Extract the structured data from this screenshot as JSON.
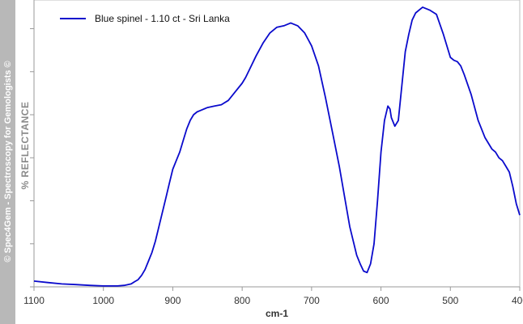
{
  "watermark": "© Spec4Gem - Spectroscopy for Gemologists ©",
  "colors": {
    "series": "#0a0acc",
    "axis": "#999999",
    "banner": "#b8b8b8"
  },
  "chart_data": {
    "type": "line",
    "xlabel": "cm-1",
    "ylabel": "% REFLECTANCE",
    "xlim": [
      1100,
      400
    ],
    "x_reversed": true,
    "ylim": [
      0,
      100
    ],
    "y_ticks_labeled": false,
    "y_tick_values": [
      0,
      15,
      30,
      45,
      60,
      75,
      90
    ],
    "x_ticks": [
      1100,
      1000,
      900,
      800,
      700,
      600,
      500,
      400
    ],
    "grid": false,
    "legend_position": "top-left",
    "series": [
      {
        "name": "Blue spinel - 1.10 ct - Sri Lanka",
        "x": [
          1100,
          1080,
          1060,
          1040,
          1020,
          1000,
          990,
          980,
          970,
          960,
          955,
          950,
          945,
          940,
          935,
          930,
          925,
          920,
          915,
          910,
          905,
          900,
          895,
          890,
          885,
          880,
          875,
          870,
          865,
          860,
          850,
          840,
          830,
          820,
          810,
          800,
          795,
          790,
          780,
          770,
          760,
          750,
          740,
          730,
          720,
          710,
          700,
          690,
          680,
          670,
          660,
          650,
          645,
          640,
          635,
          630,
          625,
          620,
          615,
          610,
          605,
          600,
          595,
          590,
          587,
          585,
          580,
          575,
          570,
          565,
          560,
          555,
          550,
          545,
          540,
          535,
          530,
          520,
          510,
          500,
          495,
          490,
          485,
          480,
          470,
          460,
          450,
          445,
          440,
          435,
          430,
          425,
          420,
          415,
          410,
          405,
          400
        ],
        "y": [
          2,
          1.5,
          1,
          0.8,
          0.5,
          0.3,
          0.3,
          0.3,
          0.5,
          1,
          1.8,
          2.5,
          4,
          6,
          9,
          12,
          16,
          21,
          26,
          31,
          36,
          41,
          44,
          47,
          51,
          55,
          58,
          60,
          61,
          61.5,
          62.5,
          63,
          63.5,
          65,
          68,
          71,
          73,
          75.5,
          80.5,
          85,
          88.5,
          90.5,
          91,
          92,
          91,
          88.5,
          84,
          77,
          66,
          54,
          42,
          28,
          21,
          16,
          11,
          8,
          5.5,
          5,
          8,
          15,
          30,
          47,
          58,
          63,
          62,
          59,
          56,
          58,
          70,
          82,
          88,
          93,
          95.5,
          96.5,
          97.5,
          97,
          96.5,
          95,
          88,
          80,
          79,
          78.5,
          77,
          74,
          67,
          58,
          52,
          50,
          48,
          47,
          45,
          44,
          42,
          40,
          35,
          29,
          25
        ]
      }
    ]
  }
}
